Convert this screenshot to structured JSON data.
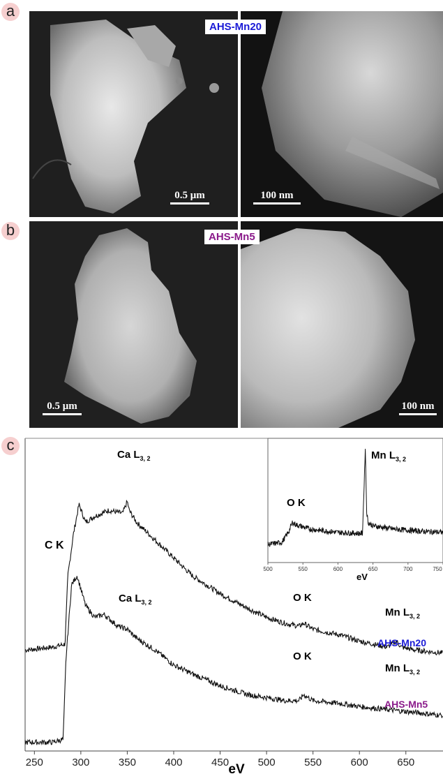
{
  "panels": {
    "a": {
      "letter": "a",
      "sample_label": "AHS-Mn20",
      "sample_color": "#1a1ad6",
      "left_scale": "0.5 μm",
      "right_scale": "100 nm"
    },
    "b": {
      "letter": "b",
      "sample_label": "AHS-Mn5",
      "sample_color": "#8a1a8a",
      "left_scale": "0.5 μm",
      "right_scale": "100 nm"
    },
    "c": {
      "letter": "c"
    }
  },
  "chart_data": [
    {
      "type": "line",
      "title": "",
      "xlabel": "eV",
      "ylabel": "",
      "xlim": [
        240,
        690
      ],
      "xticks": [
        250,
        300,
        350,
        400,
        450,
        500,
        550,
        600,
        650
      ],
      "grid": false,
      "series": [
        {
          "name": "AHS-Mn20",
          "color": "#1a1ad6",
          "x": [
            240,
            270,
            283,
            286,
            292,
            298,
            305,
            315,
            330,
            345,
            350,
            352,
            360,
            380,
            400,
            420,
            450,
            480,
            500,
            520,
            535,
            540,
            550,
            580,
            600,
            630,
            640,
            645,
            660,
            690
          ],
          "y": [
            0.33,
            0.34,
            0.35,
            0.58,
            0.72,
            0.82,
            0.76,
            0.78,
            0.8,
            0.79,
            0.83,
            0.8,
            0.76,
            0.7,
            0.64,
            0.58,
            0.52,
            0.47,
            0.44,
            0.42,
            0.41,
            0.42,
            0.4,
            0.38,
            0.36,
            0.34,
            0.36,
            0.34,
            0.33,
            0.32
          ],
          "annotations": [
            "C K",
            "Ca L3, 2",
            "O K",
            "Mn L3, 2"
          ]
        },
        {
          "name": "AHS-Mn5",
          "color": "#8a1a8a",
          "x": [
            240,
            270,
            281,
            284,
            290,
            296,
            305,
            315,
            325,
            340,
            350,
            360,
            380,
            400,
            420,
            450,
            480,
            500,
            520,
            535,
            540,
            550,
            580,
            600,
            630,
            660,
            690
          ],
          "y": [
            0.02,
            0.02,
            0.03,
            0.3,
            0.55,
            0.58,
            0.48,
            0.44,
            0.45,
            0.41,
            0.4,
            0.37,
            0.33,
            0.28,
            0.25,
            0.21,
            0.18,
            0.17,
            0.16,
            0.16,
            0.18,
            0.16,
            0.15,
            0.14,
            0.13,
            0.12,
            0.11
          ],
          "annotations": [
            "Ca L3, 2",
            "O K",
            "Mn L3, 2"
          ]
        }
      ]
    },
    {
      "type": "line",
      "title": "inset",
      "xlabel": "eV",
      "xlim": [
        500,
        750
      ],
      "xticks": [
        500,
        550,
        600,
        650,
        700,
        750
      ],
      "series": [
        {
          "name": "",
          "x": [
            500,
            520,
            530,
            535,
            540,
            560,
            600,
            635,
            637,
            639,
            641,
            643,
            650,
            680,
            720,
            750
          ],
          "y": [
            0.1,
            0.12,
            0.22,
            0.3,
            0.28,
            0.24,
            0.21,
            0.2,
            0.55,
            0.98,
            0.4,
            0.3,
            0.27,
            0.24,
            0.22,
            0.21
          ],
          "annotations": [
            "O K",
            "Mn L3, 2"
          ]
        }
      ]
    }
  ],
  "labels": {
    "ck": "C K",
    "ca_base": "Ca L",
    "ca_sub": "3, 2",
    "ok": "O K",
    "mn_base": "Mn L",
    "mn_sub": "3, 2",
    "xlabel": "eV",
    "series1": "AHS-Mn20",
    "series2": "AHS-Mn5",
    "inset_xlabel": "eV"
  }
}
